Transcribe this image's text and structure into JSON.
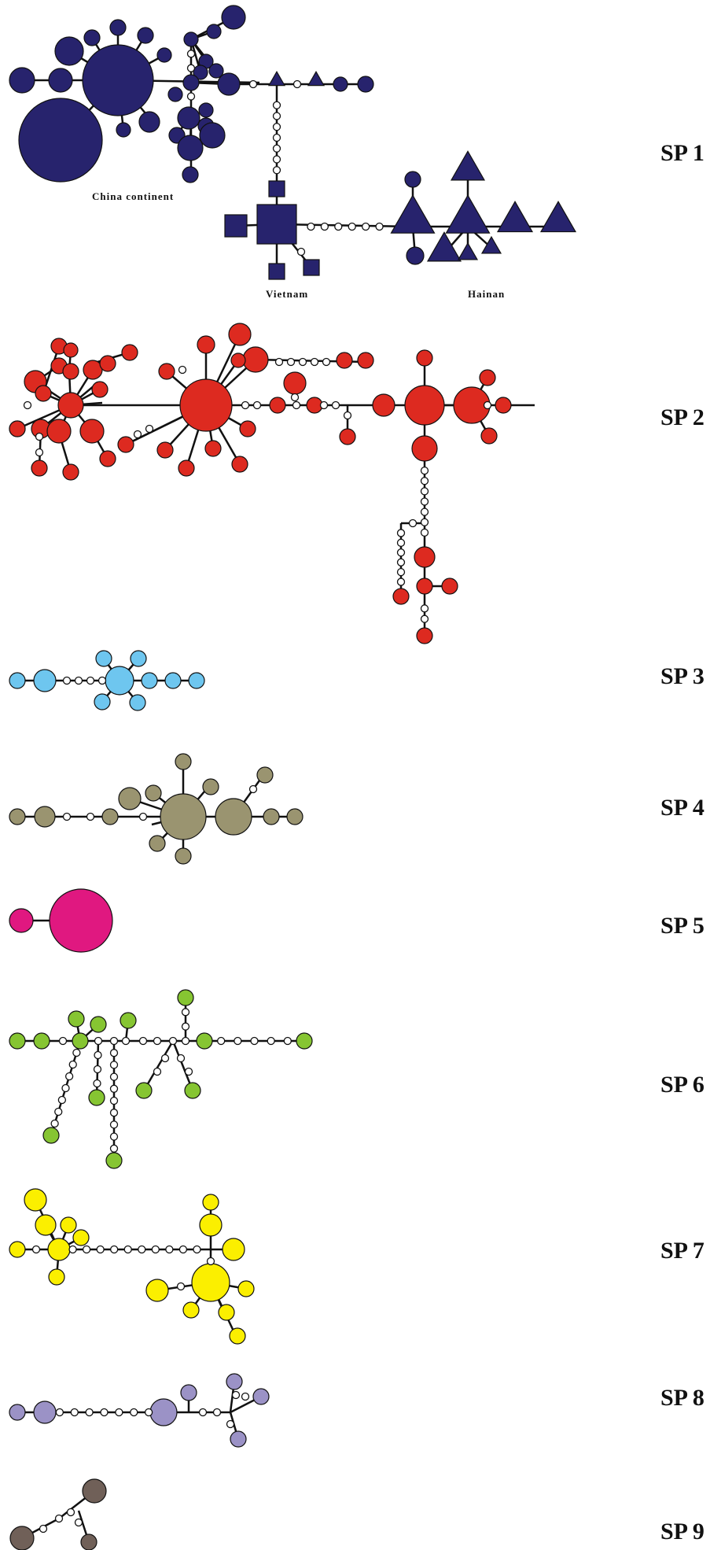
{
  "figure": {
    "labels": [
      "SP 1",
      "SP 2",
      "SP 3",
      "SP 4",
      "SP 5",
      "SP 6",
      "SP 7",
      "SP 8",
      "SP 9"
    ],
    "regions": [
      "China   continent",
      "Vietnam",
      "Hainan"
    ]
  },
  "colors": {
    "sp1": "#27236d",
    "sp2": "#dd2a20",
    "sp3": "#6ec6ef",
    "sp4": "#9a9470",
    "sp5": "#e01880",
    "sp6": "#86c532",
    "sp7": "#fbef00",
    "sp8": "#9b92c6",
    "sp9": "#706058",
    "median_vector": "#ffffff",
    "edge": "#111111"
  },
  "shapes": {
    "sp1_china_continent": "circle",
    "sp1_vietnam": "square",
    "sp1_hainan": "triangle"
  }
}
